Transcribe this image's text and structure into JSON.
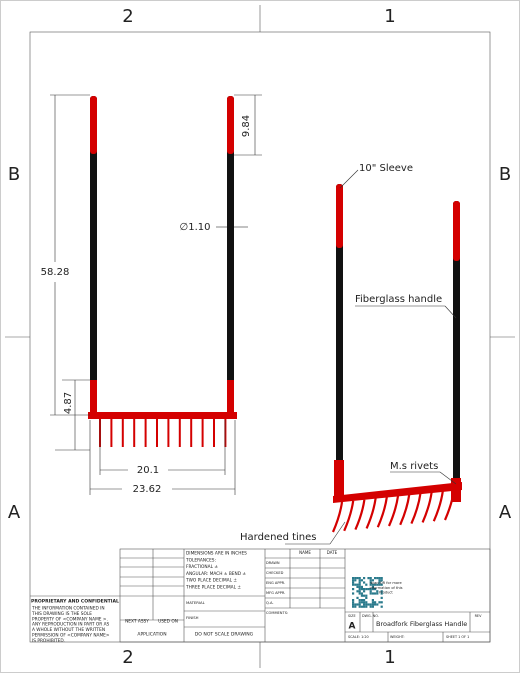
{
  "zones": {
    "top": [
      "2",
      "1"
    ],
    "bottom": [
      "2",
      "1"
    ],
    "left": [
      "B",
      "A"
    ],
    "right": [
      "B",
      "A"
    ]
  },
  "dimensions": {
    "overall_height": "58.28",
    "sleeve_bottom": "4.87",
    "sleeve_top": "9.84",
    "diameter": "∅1.10",
    "inner_width": "20.1",
    "outer_width": "23.62"
  },
  "callouts": {
    "sleeve": "10\" Sleeve",
    "handle": "Fiberglass handle",
    "rivets": "M.s rivets",
    "tines": "Hardened tines"
  },
  "proprietary": {
    "title": "PROPRIETARY AND CONFIDENTIAL",
    "lines": [
      "THE INFORMATION CONTAINED IN",
      "THIS DRAWING IS THE SOLE",
      "PROPERTY OF <COMPANY NAME >.",
      "ANY REPRODUCTION IN PART OR AS",
      "A WHOLE WITHOUT THE WRITTEN",
      "PERMISSION OF <COMPANY NAME>",
      "IS PROHIBITED."
    ]
  },
  "title_block": {
    "next_assy": "NEXT ASSY",
    "used_on": "USED ON",
    "application": "APPLICATION",
    "tolerances": [
      "DIMENSIONS ARE IN INCHES",
      "TOLERANCES:",
      "FRACTIONAL ±",
      "ANGULAR: MACH ±    BEND ±",
      "TWO PLACE DECIMAL    ±",
      "THREE PLACE DECIMAL    ±"
    ],
    "material": "MATERIAL",
    "finish": "FINISH",
    "no_scale": "DO NOT SCALE DRAWING",
    "name": "NAME",
    "date": "DATE",
    "rows": [
      "DRAWN",
      "CHECKED",
      "ENG APPR.",
      "MFG APPR.",
      "Q.A.",
      "COMMENTS:"
    ],
    "qr_note": [
      "scan QR for more",
      "information of this",
      "Product"
    ],
    "size": "SIZE",
    "dwg_no": "DWG.  NO.",
    "rev": "REV",
    "size_value": "A",
    "drawing_title": "Broadfork Fiberglass Handle",
    "scale": "SCALE: 1:20",
    "weight": "WEIGHT:",
    "sheet": "SHEET 1 OF 1"
  }
}
